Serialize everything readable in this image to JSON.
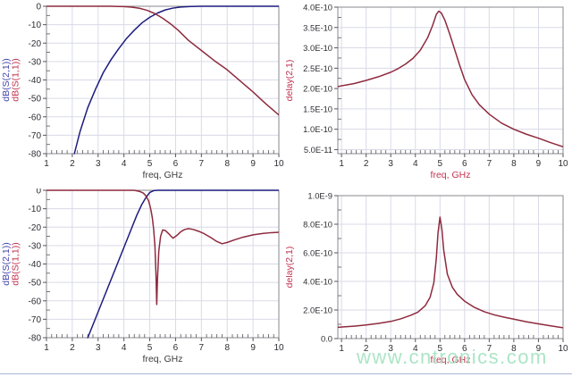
{
  "page": {
    "background": "#ffffff",
    "divider_color": "#a9b6d6"
  },
  "watermark": {
    "text": "www.cntronics.com",
    "color": "#a4e3c0"
  },
  "style": {
    "grid_color": "#d9dae7",
    "frame_color": "#88888f",
    "tick_color": "#55555c",
    "tick_label_color": "#2e2e33"
  },
  "chart_data": [
    {
      "name": "s-parameters-wideband",
      "type": "line",
      "title": "",
      "xlabel": "freq, GHz",
      "xlabel_color": "#3c3c40",
      "ylabel_parts": [
        {
          "text": "dB(S(2,1))",
          "color": "#4646ae"
        },
        {
          "text": "dB(S(1,1))",
          "color": "#c23350"
        }
      ],
      "xlim": [
        1,
        10
      ],
      "ylim": [
        -80,
        0
      ],
      "xminor_step": 0.2,
      "yminor_step": 5,
      "xticks": [
        {
          "v": 1,
          "label": "1"
        },
        {
          "v": 2,
          "label": "2"
        },
        {
          "v": 3,
          "label": "3"
        },
        {
          "v": 4,
          "label": "4"
        },
        {
          "v": 5,
          "label": "5"
        },
        {
          "v": 6,
          "label": "6"
        },
        {
          "v": 7,
          "label": "7"
        },
        {
          "v": 8,
          "label": "8"
        },
        {
          "v": 9,
          "label": "9"
        },
        {
          "v": 10,
          "label": "10"
        }
      ],
      "yticks": [
        {
          "v": 0,
          "label": "0"
        },
        {
          "v": -10,
          "label": "-10"
        },
        {
          "v": -20,
          "label": "-20"
        },
        {
          "v": -30,
          "label": "-30"
        },
        {
          "v": -40,
          "label": "-40"
        },
        {
          "v": -50,
          "label": "-50"
        },
        {
          "v": -60,
          "label": "-60"
        },
        {
          "v": -70,
          "label": "-70"
        },
        {
          "v": -80,
          "label": "-80"
        }
      ],
      "series": [
        {
          "name": "dB(S(2,1))",
          "color": "#1c1c7e",
          "x": [
            2.08,
            2.3,
            2.6,
            2.9,
            3.2,
            3.5,
            3.8,
            4.1,
            4.4,
            4.7,
            5.0,
            5.3,
            5.6,
            5.9,
            6.2,
            6.6,
            7.0,
            10.0
          ],
          "y": [
            -80,
            -68,
            -55,
            -45,
            -36,
            -29,
            -23,
            -17.5,
            -13,
            -9,
            -6,
            -3.7,
            -2,
            -1,
            -0.4,
            -0.1,
            0,
            0
          ]
        },
        {
          "name": "dB(S(1,1))",
          "color": "#8e2a3e",
          "x": [
            1.0,
            3.5,
            4.0,
            4.3,
            4.6,
            4.9,
            5.2,
            5.5,
            5.8,
            6.1,
            6.5,
            7.0,
            7.5,
            8.0,
            8.5,
            9.0,
            9.5,
            10.0
          ],
          "y": [
            0,
            0,
            -0.2,
            -0.5,
            -1.1,
            -2.2,
            -4,
            -6.5,
            -9.5,
            -13,
            -18.5,
            -24,
            -29.5,
            -34.5,
            -40.5,
            -46.5,
            -53,
            -59
          ]
        }
      ]
    },
    {
      "name": "group-delay-wideband",
      "type": "line",
      "title": "",
      "xlabel": "freq, GHz",
      "xlabel_color": "#c23350",
      "ylabel_parts": [
        {
          "text": "delay(2,1)",
          "color": "#c23350"
        }
      ],
      "xlim": [
        0.85,
        10
      ],
      "ylim": [
        4e-11,
        4e-10
      ],
      "xminor_step": 0.2,
      "yminor_step": 2.5e-11,
      "xticks": [
        {
          "v": 1,
          "label": "1"
        },
        {
          "v": 2,
          "label": "2"
        },
        {
          "v": 3,
          "label": "3"
        },
        {
          "v": 4,
          "label": "4"
        },
        {
          "v": 5,
          "label": "5"
        },
        {
          "v": 6,
          "label": "6"
        },
        {
          "v": 7,
          "label": "7"
        },
        {
          "v": 8,
          "label": "8"
        },
        {
          "v": 9,
          "label": "9"
        },
        {
          "v": 10,
          "label": "10"
        }
      ],
      "yticks": [
        {
          "v": 5e-11,
          "label": "5.0E-11"
        },
        {
          "v": 1e-10,
          "label": "1.0E-10"
        },
        {
          "v": 1.5e-10,
          "label": "1.5E-10"
        },
        {
          "v": 2e-10,
          "label": "2.0E-10"
        },
        {
          "v": 2.5e-10,
          "label": "2.5E-10"
        },
        {
          "v": 3e-10,
          "label": "3.0E-10"
        },
        {
          "v": 3.5e-10,
          "label": "3.5E-10"
        },
        {
          "v": 4e-10,
          "label": "4.0E-10"
        }
      ],
      "series": [
        {
          "name": "delay(2,1)",
          "color": "#8e2a3e",
          "x": [
            0.85,
            1.5,
            2.0,
            2.5,
            3.0,
            3.3,
            3.6,
            3.9,
            4.2,
            4.5,
            4.7,
            4.85,
            4.95,
            5.05,
            5.2,
            5.4,
            5.6,
            5.8,
            6.0,
            6.3,
            6.6,
            7.0,
            7.5,
            8.0,
            8.5,
            9.0,
            9.5,
            10.0
          ],
          "y": [
            2.05e-10,
            2.12e-10,
            2.2e-10,
            2.29e-10,
            2.4e-10,
            2.49e-10,
            2.6e-10,
            2.74e-10,
            2.94e-10,
            3.25e-10,
            3.55e-10,
            3.82e-10,
            3.9e-10,
            3.86e-10,
            3.68e-10,
            3.33e-10,
            2.95e-10,
            2.57e-10,
            2.22e-10,
            1.85e-10,
            1.6e-10,
            1.37e-10,
            1.15e-10,
            1e-10,
            8.8e-11,
            7.8e-11,
            6.7e-11,
            5.7e-11
          ]
        }
      ]
    },
    {
      "name": "s-parameters-passband-detail",
      "type": "line",
      "title": "",
      "xlabel": "freq, GHz",
      "xlabel_color": "#3c3c40",
      "ylabel_parts": [
        {
          "text": "dB(S(2,1))",
          "color": "#4646ae"
        },
        {
          "text": "dB(S(1,1))",
          "color": "#c23350"
        }
      ],
      "xlim": [
        1,
        10
      ],
      "ylim": [
        -80,
        0
      ],
      "xminor_step": 0.2,
      "yminor_step": 5,
      "xticks": [
        {
          "v": 1,
          "label": "1"
        },
        {
          "v": 2,
          "label": "2"
        },
        {
          "v": 3,
          "label": "3"
        },
        {
          "v": 4,
          "label": "4"
        },
        {
          "v": 5,
          "label": "5"
        },
        {
          "v": 6,
          "label": "6"
        },
        {
          "v": 7,
          "label": "7"
        },
        {
          "v": 8,
          "label": "8"
        },
        {
          "v": 9,
          "label": "9"
        },
        {
          "v": 10,
          "label": "10"
        }
      ],
      "yticks": [
        {
          "v": 0,
          "label": "0"
        },
        {
          "v": -10,
          "label": "-10"
        },
        {
          "v": -20,
          "label": "-20"
        },
        {
          "v": -30,
          "label": "-30"
        },
        {
          "v": -40,
          "label": "-40"
        },
        {
          "v": -50,
          "label": "-50"
        },
        {
          "v": -60,
          "label": "-60"
        },
        {
          "v": -70,
          "label": "-70"
        },
        {
          "v": -80,
          "label": "-80"
        }
      ],
      "series": [
        {
          "name": "dB(S(2,1))",
          "color": "#1c1c7e",
          "x": [
            2.6,
            3.0,
            3.4,
            3.8,
            4.2,
            4.5,
            4.7,
            4.85,
            5.0,
            5.15,
            5.3,
            6.0,
            10.0
          ],
          "y": [
            -80,
            -66,
            -52,
            -38,
            -24,
            -13.5,
            -7.5,
            -4,
            -1.2,
            -0.2,
            0,
            0,
            0
          ]
        },
        {
          "name": "dB(S(1,1))",
          "color": "#8e2a3e",
          "x": [
            1.0,
            4.4,
            4.6,
            4.75,
            4.85,
            4.95,
            5.0,
            5.05,
            5.1,
            5.15,
            5.2,
            5.24,
            5.27,
            5.3,
            5.35,
            5.42,
            5.5,
            5.6,
            5.75,
            5.9,
            6.05,
            6.2,
            6.35,
            6.5,
            6.7,
            6.9,
            7.1,
            7.35,
            7.6,
            7.8,
            8.0,
            8.3,
            8.6,
            9.0,
            9.4,
            9.7,
            10.0
          ],
          "y": [
            0,
            0,
            -0.6,
            -1.5,
            -3,
            -5.5,
            -8,
            -11,
            -15,
            -21,
            -30,
            -45,
            -62,
            -48,
            -33,
            -25,
            -21.5,
            -21.8,
            -23.8,
            -26,
            -24.5,
            -22.5,
            -21.3,
            -20.8,
            -21.3,
            -22.3,
            -23.5,
            -25.5,
            -27.8,
            -29,
            -28.3,
            -26.8,
            -25.5,
            -24.2,
            -23.4,
            -23,
            -22.8
          ]
        }
      ]
    },
    {
      "name": "group-delay-passband-detail",
      "type": "line",
      "title": "",
      "xlabel": "freq, GHz",
      "xlabel_color": "#c23350",
      "ylabel_parts": [
        {
          "text": "delay(2,1)",
          "color": "#c23350"
        }
      ],
      "xlim": [
        0.85,
        10
      ],
      "ylim": [
        0,
        1e-09
      ],
      "xminor_step": 0.2,
      "yminor_step": 1e-10,
      "xticks": [
        {
          "v": 1,
          "label": "1"
        },
        {
          "v": 2,
          "label": "2"
        },
        {
          "v": 3,
          "label": "3"
        },
        {
          "v": 4,
          "label": "4"
        },
        {
          "v": 5,
          "label": "5"
        },
        {
          "v": 6,
          "label": "6"
        },
        {
          "v": 7,
          "label": "7"
        },
        {
          "v": 8,
          "label": "8"
        },
        {
          "v": 9,
          "label": "9"
        },
        {
          "v": 10,
          "label": "10"
        }
      ],
      "yticks": [
        {
          "v": 0,
          "label": "0.0"
        },
        {
          "v": 2e-10,
          "label": "2.0E-10"
        },
        {
          "v": 4e-10,
          "label": "4.0E-10"
        },
        {
          "v": 6e-10,
          "label": "6.0E-10"
        },
        {
          "v": 8e-10,
          "label": "8.0E-10"
        },
        {
          "v": 1e-09,
          "label": "1.0E-9"
        }
      ],
      "series": [
        {
          "name": "delay(2,1)",
          "color": "#8e2a3e",
          "x": [
            0.85,
            1.5,
            2.0,
            2.5,
            3.0,
            3.4,
            3.8,
            4.1,
            4.4,
            4.6,
            4.75,
            4.85,
            4.92,
            5.0,
            5.08,
            5.15,
            5.3,
            5.5,
            5.7,
            6.0,
            6.4,
            6.8,
            7.2,
            7.6,
            8.0,
            8.5,
            9.0,
            9.5,
            10.0
          ],
          "y": [
            7.9e-11,
            8.7e-11,
            9.5e-11,
            1.06e-10,
            1.2e-10,
            1.38e-10,
            1.62e-10,
            1.85e-10,
            2.3e-10,
            2.9e-10,
            3.9e-10,
            5.6e-10,
            7.4e-10,
            8.5e-10,
            7.6e-10,
            6.2e-10,
            4.5e-10,
            3.6e-10,
            3.1e-10,
            2.62e-10,
            2.18e-10,
            1.88e-10,
            1.66e-10,
            1.5e-10,
            1.36e-10,
            1.18e-10,
            1.03e-10,
            8.9e-11,
            7.6e-11
          ]
        }
      ]
    }
  ]
}
